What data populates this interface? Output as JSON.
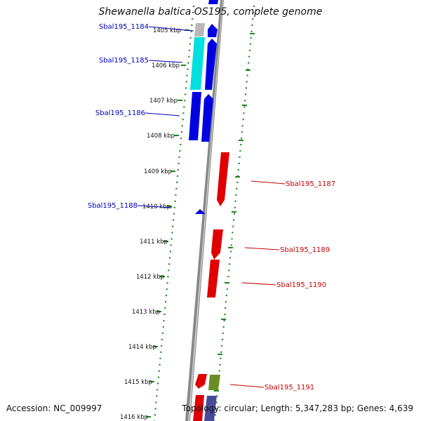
{
  "title": "Shewanella baltica OS195, complete genome",
  "footer": {
    "accession": "Accession: NC_009997",
    "summary": "Topology: circular; Length: 5,347,283 bp; Genes: 4,639"
  },
  "colors": {
    "cds_forward": "#0000e0",
    "cds_reverse": "#e00000",
    "cds_cyan": "#00e0e0",
    "grey_feature": "#b8b8b8",
    "olive_feature": "#6b8e23",
    "indigo_feature": "#4a4a9a",
    "backbone": "#888888",
    "guide_dots": "#1a8a1a",
    "label_blue": "#0000b3",
    "label_red": "#c40000"
  },
  "ticks": [
    "1405 kbp",
    "1406 kbp",
    "1407 kbp",
    "1408 kbp",
    "1409 kbp",
    "1410 kbp",
    "1411 kbp",
    "1412 kbp",
    "1413 kbp",
    "1414 kbp",
    "1415 kbp",
    "1416 kbp"
  ],
  "gene_labels_forward": [
    "Sbal195_1184",
    "Sbal195_1185",
    "Sbal195_1186",
    "Sbal195_1188"
  ],
  "gene_labels_reverse": [
    "Sbal195_1187",
    "Sbal195_1189",
    "Sbal195_1190",
    "Sbal195_1191"
  ]
}
